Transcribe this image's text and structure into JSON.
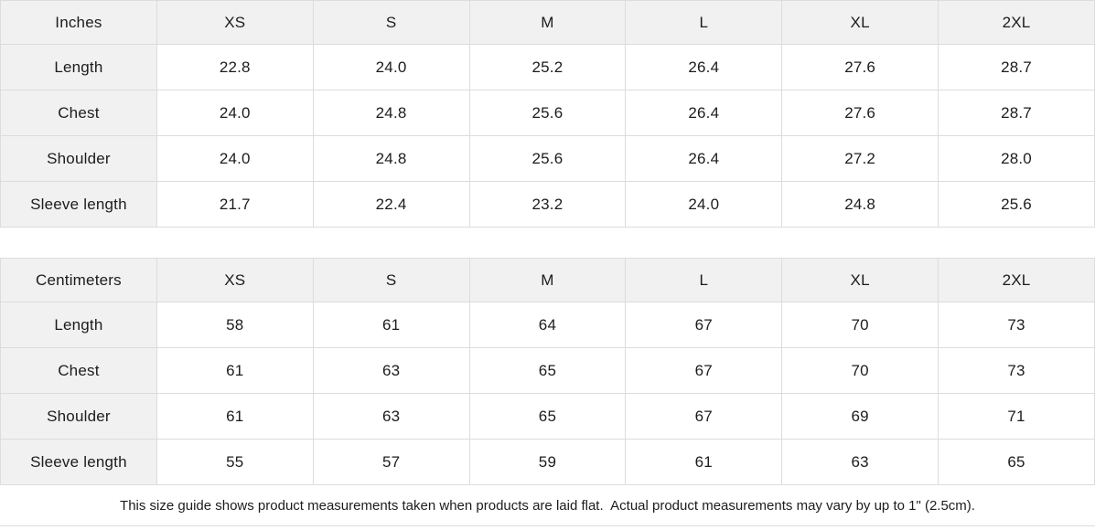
{
  "tables": [
    {
      "unit": "Inches",
      "sizes": [
        "XS",
        "S",
        "M",
        "L",
        "XL",
        "2XL"
      ],
      "rows": [
        {
          "label": "Length",
          "values": [
            "22.8",
            "24.0",
            "25.2",
            "26.4",
            "27.6",
            "28.7"
          ]
        },
        {
          "label": "Chest",
          "values": [
            "24.0",
            "24.8",
            "25.6",
            "26.4",
            "27.6",
            "28.7"
          ]
        },
        {
          "label": "Shoulder",
          "values": [
            "24.0",
            "24.8",
            "25.6",
            "26.4",
            "27.2",
            "28.0"
          ]
        },
        {
          "label": "Sleeve length",
          "values": [
            "21.7",
            "22.4",
            "23.2",
            "24.0",
            "24.8",
            "25.6"
          ]
        }
      ]
    },
    {
      "unit": "Centimeters",
      "sizes": [
        "XS",
        "S",
        "M",
        "L",
        "XL",
        "2XL"
      ],
      "rows": [
        {
          "label": "Length",
          "values": [
            "58",
            "61",
            "64",
            "67",
            "70",
            "73"
          ]
        },
        {
          "label": "Chest",
          "values": [
            "61",
            "63",
            "65",
            "67",
            "70",
            "73"
          ]
        },
        {
          "label": "Shoulder",
          "values": [
            "61",
            "63",
            "65",
            "67",
            "69",
            "71"
          ]
        },
        {
          "label": "Sleeve length",
          "values": [
            "55",
            "57",
            "59",
            "61",
            "63",
            "65"
          ]
        }
      ]
    }
  ],
  "footer": {
    "note": "This size guide shows product measurements taken when products are laid flat.  Actual product measurements may vary by up to 1\" (2.5cm)."
  },
  "colors": {
    "header_bg": "#f1f1f1",
    "border": "#dcdcdc",
    "text": "#1c1c1c",
    "cell_bg": "#ffffff"
  }
}
